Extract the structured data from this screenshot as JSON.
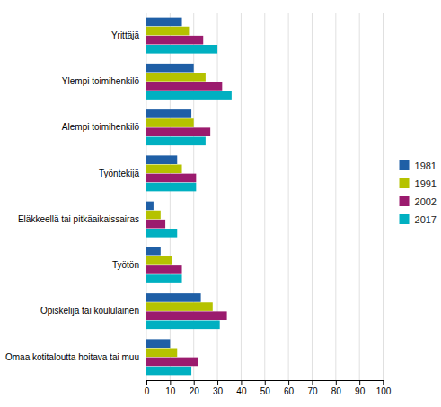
{
  "chart_data": {
    "type": "bar",
    "orientation": "horizontal",
    "categories": [
      "Yrittäjä",
      "Ylempi toimihenkilö",
      "Alempi toimihenkilö",
      "Työntekijä",
      "Eläkkeellä tai pitkäaikaissairas",
      "Työtön",
      "Opiskelija tai koululainen",
      "Omaa kotitaloutta hoitava tai muu"
    ],
    "series": [
      {
        "name": "1981",
        "color": "#1f5fa6",
        "values": [
          15,
          20,
          19,
          13,
          3,
          6,
          23,
          10
        ]
      },
      {
        "name": "1991",
        "color": "#b5c200",
        "values": [
          18,
          25,
          20,
          15,
          6,
          11,
          28,
          13
        ]
      },
      {
        "name": "2002",
        "color": "#9b1b6e",
        "values": [
          24,
          32,
          27,
          21,
          8,
          15,
          34,
          22
        ]
      },
      {
        "name": "2017",
        "color": "#00b0c1",
        "values": [
          30,
          36,
          25,
          21,
          13,
          15,
          31,
          19
        ]
      }
    ],
    "xlim": [
      0,
      100
    ],
    "xticks": [
      0,
      10,
      20,
      30,
      40,
      50,
      60,
      70,
      80,
      90,
      100
    ],
    "grid": true,
    "legend": "right"
  }
}
